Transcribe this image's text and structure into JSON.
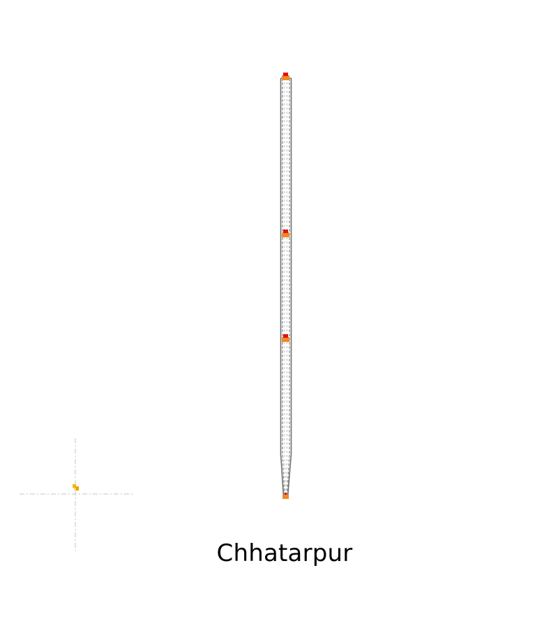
{
  "map": {
    "place_name": "Chhatarpur",
    "route_color": "#6e6e6e",
    "route_dash_color": "#d0d0d0",
    "station_marker_color": "#f08a24",
    "station_top_color": "#e01010",
    "terminus_marker_color": "#f08a24",
    "locator_color": "#f5b800",
    "crosshair_color": "#d9d9d9",
    "station_marker_icon": "station-marker-icon",
    "terminus_marker_icon": "terminus-marker-icon",
    "locator_icon": "location-pin-icon"
  }
}
